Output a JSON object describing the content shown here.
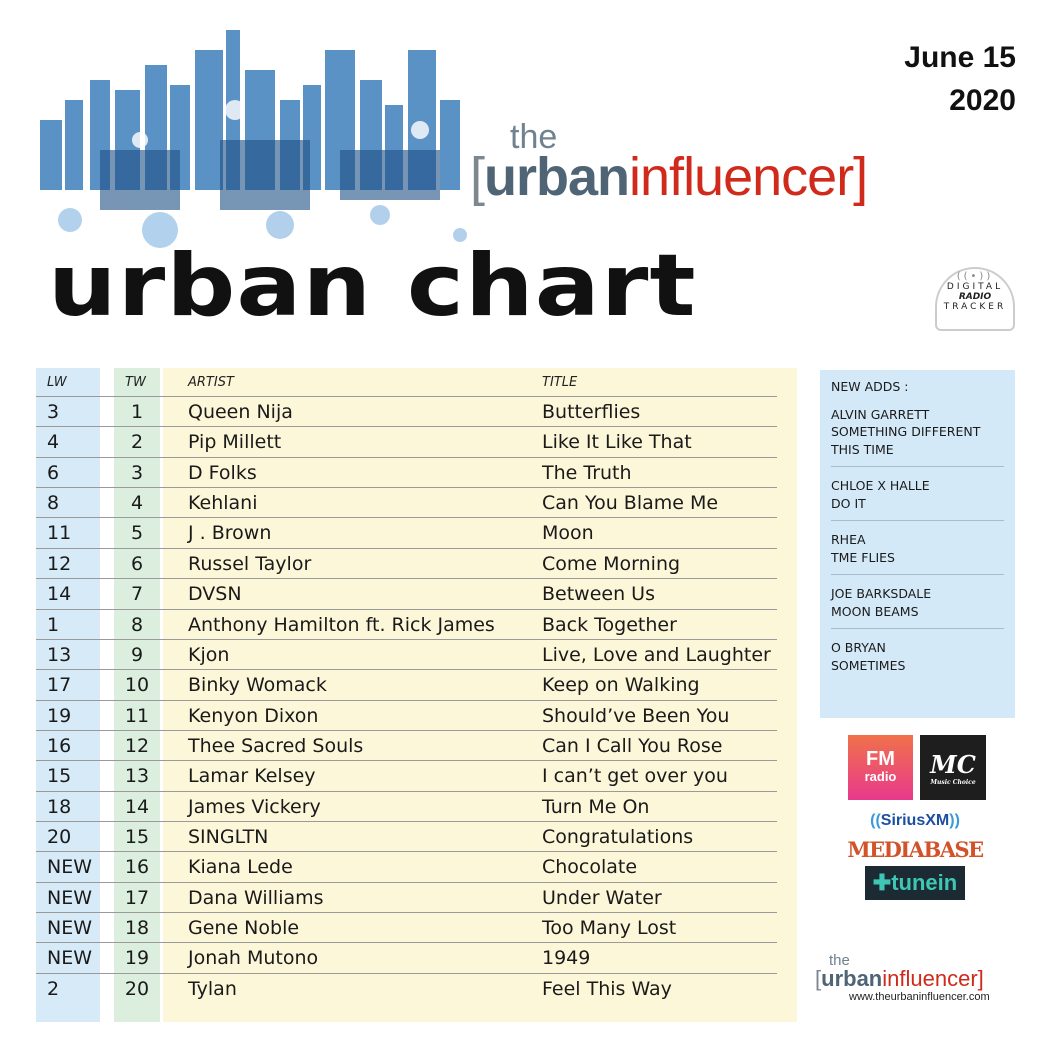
{
  "header": {
    "date_line1": "June 15",
    "date_line2": "2020",
    "logo_the": "the",
    "logo_urban": "urban",
    "logo_influencer": "influencer",
    "chart_title": "urban chart",
    "tracker_line1": "DIGITAL",
    "tracker_line2": "RADIO",
    "tracker_line3": "TRACKER"
  },
  "table": {
    "headers": {
      "lw": "LW",
      "tw": "TW",
      "artist": "ARTIST",
      "title": "TITLE"
    },
    "rows": [
      {
        "lw": "3",
        "tw": "1",
        "artist": "Queen Nija",
        "title": "Butterflies"
      },
      {
        "lw": "4",
        "tw": "2",
        "artist": "Pip Millett",
        "title": "Like It Like That"
      },
      {
        "lw": "6",
        "tw": "3",
        "artist": "D Folks",
        "title": "The Truth"
      },
      {
        "lw": "8",
        "tw": "4",
        "artist": "Kehlani",
        "title": "Can You Blame Me"
      },
      {
        "lw": "11",
        "tw": "5",
        "artist": "J . Brown",
        "title": "Moon"
      },
      {
        "lw": "12",
        "tw": "6",
        "artist": "Russel Taylor",
        "title": "Come Morning"
      },
      {
        "lw": "14",
        "tw": "7",
        "artist": "DVSN",
        "title": "Between Us"
      },
      {
        "lw": "1",
        "tw": "8",
        "artist": "Anthony Hamilton ft. Rick James",
        "title": "Back Together"
      },
      {
        "lw": "13",
        "tw": "9",
        "artist": "Kjon",
        "title": "Live, Love and Laughter"
      },
      {
        "lw": "17",
        "tw": "10",
        "artist": "Binky Womack",
        "title": "Keep on Walking"
      },
      {
        "lw": "19",
        "tw": "11",
        "artist": "Kenyon Dixon",
        "title": "Should’ve Been You"
      },
      {
        "lw": "16",
        "tw": "12",
        "artist": "Thee Sacred Souls",
        "title": "Can I Call You Rose"
      },
      {
        "lw": "15",
        "tw": "13",
        "artist": "Lamar Kelsey",
        "title": "I can’t get over you"
      },
      {
        "lw": "18",
        "tw": "14",
        "artist": "James Vickery",
        "title": "Turn Me On"
      },
      {
        "lw": "20",
        "tw": "15",
        "artist": "SINGLTN",
        "title": "Congratulations"
      },
      {
        "lw": "NEW",
        "tw": "16",
        "artist": "Kiana Lede",
        "title": "Chocolate"
      },
      {
        "lw": "NEW",
        "tw": "17",
        "artist": "Dana Williams",
        "title": "Under Water"
      },
      {
        "lw": "NEW",
        "tw": "18",
        "artist": "Gene Noble",
        "title": "Too Many Lost"
      },
      {
        "lw": "NEW",
        "tw": "19",
        "artist": "Jonah Mutono",
        "title": "1949"
      },
      {
        "lw": "2",
        "tw": "20",
        "artist": "Tylan",
        "title": "Feel This Way"
      }
    ]
  },
  "new_adds": {
    "heading": "NEW ADDS :",
    "items": [
      {
        "artist": "ALVIN GARRETT",
        "title": "SOMETHING DIFFERENT THIS TIME"
      },
      {
        "artist": "CHLOE X HALLE",
        "title": "DO IT"
      },
      {
        "artist": "RHEA",
        "title": "TME FLIES"
      },
      {
        "artist": "JOE BARKSDALE",
        "title": "MOON BEAMS"
      },
      {
        "artist": "O BRYAN",
        "title": "SOMETIMES"
      }
    ]
  },
  "partners": {
    "fm_line1": "FM",
    "fm_line2": "radio",
    "mc": "MC",
    "mc_sub": "Music Choice",
    "sirius": "SiriusXM",
    "mediabase": "MEDIABASE",
    "tunein": "tunein"
  },
  "footer": {
    "logo_the": "the",
    "logo_urban": "urban",
    "logo_influencer": "influencer",
    "url": "www.theurbaninfluencer.com"
  },
  "colors": {
    "lw_bg": "#d6eaf8",
    "tw_bg": "#dcefdf",
    "main_bg": "#fdf7da",
    "side_bg": "#d4e9f8",
    "brand_red": "#cf2a1b",
    "skyline_blue": "#3a78b5"
  }
}
